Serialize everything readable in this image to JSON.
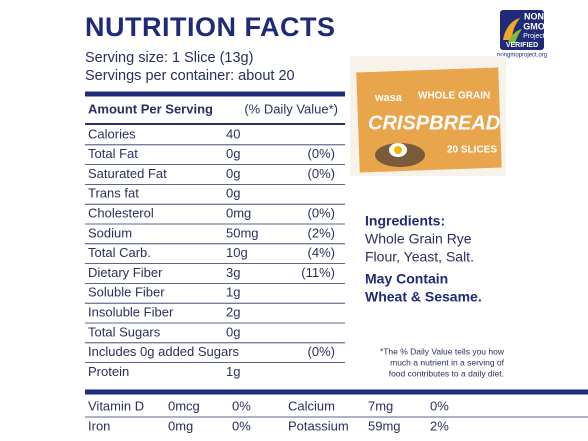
{
  "header": {
    "title": "NUTRITION FACTS",
    "serving_size": "Serving size: 1 Slice (13g)",
    "servings_per_container": "Servings per container: about 20"
  },
  "badge": {
    "lines": [
      "NON",
      "GMO",
      "Project",
      "VERIFIED"
    ],
    "url": "nongmoproject.org"
  },
  "product": {
    "brand": "wasa",
    "variety": "WHOLE GRAIN",
    "name": "CRISPBREAD",
    "count": "20 SLICES"
  },
  "table": {
    "header": [
      "Amount Per Serving",
      "(% Daily Value*)"
    ],
    "rows": [
      {
        "name": "Calories",
        "amount": "40"
      },
      {
        "name": "Total Fat",
        "amount": "0g",
        "dv": "(0%)"
      },
      {
        "name": "Saturated Fat",
        "amount": "0g",
        "dv": "(0%)"
      },
      {
        "name": "Trans fat",
        "amount": "0g"
      },
      {
        "name": "Cholesterol",
        "amount": "0mg",
        "dv": "(0%)"
      },
      {
        "name": "Sodium",
        "amount": "50mg",
        "dv": "(2%)"
      },
      {
        "name": "Total Carb.",
        "amount": "10g",
        "dv": "(4%)"
      },
      {
        "name": "Dietary Fiber",
        "amount": "3g",
        "dv": "(11%)"
      },
      {
        "name": "Soluble Fiber",
        "amount": "1g"
      },
      {
        "name": "Insoluble Fiber",
        "amount": "2g"
      },
      {
        "name": "Total Sugars",
        "amount": "0g"
      },
      {
        "name": "Includes 0g added Sugars",
        "dv": "(0%)"
      },
      {
        "name": "Protein",
        "amount": "1g"
      }
    ]
  },
  "minerals": [
    [
      "Vitamin D",
      "0mcg",
      "0%",
      "Calcium",
      "7mg",
      "0%"
    ],
    [
      "Iron",
      "0mg",
      "0%",
      "Potassium",
      "59mg",
      "2%"
    ]
  ],
  "ingredients": {
    "label": "Ingredients:",
    "lines": [
      "Whole Grain Rye",
      "Flour, Yeast, Salt."
    ],
    "allergen": [
      "May Contain",
      "Wheat & Sesame."
    ]
  },
  "footnote": [
    "*The % Daily Value tells you how",
    "much a nutrient in a serving of",
    "food contributes to a daily diet."
  ]
}
